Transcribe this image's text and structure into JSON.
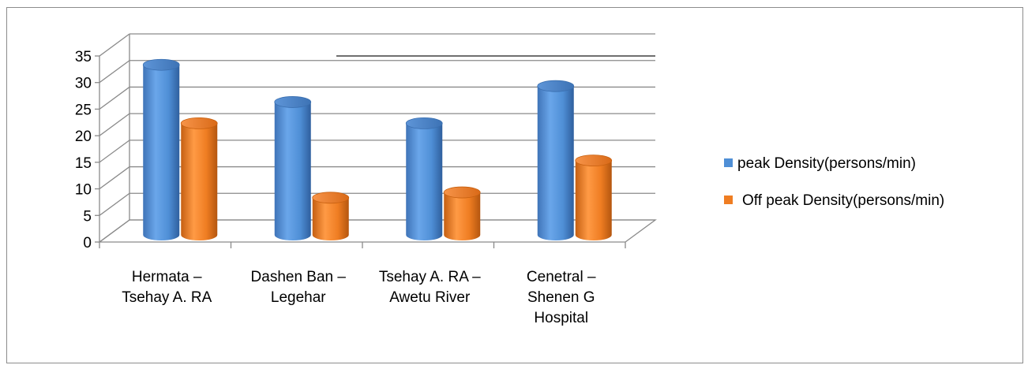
{
  "chart_data": {
    "type": "bar",
    "categories": [
      [
        "Hermata  –",
        "Tsehay A. RA"
      ],
      [
        "Dashen Ban –",
        "Legehar"
      ],
      [
        "Tsehay A. RA –",
        "Awetu River"
      ],
      [
        "Cenetral –",
        "Shenen G",
        "Hospital"
      ]
    ],
    "series": [
      {
        "name": "peak Density(persons/min)",
        "values": [
          32,
          25,
          21,
          28
        ],
        "color": "#4f8fd6"
      },
      {
        "name": "Off peak Density(persons/min)",
        "values": [
          21,
          7,
          8,
          14
        ],
        "color": "#ef7d22"
      }
    ],
    "ylim": [
      0,
      35
    ],
    "yticks": [
      "0",
      "5",
      "10",
      "15",
      "20",
      "25",
      "30",
      "35"
    ],
    "grid": true,
    "legend_position": "right",
    "style": "3d-cylinder"
  }
}
